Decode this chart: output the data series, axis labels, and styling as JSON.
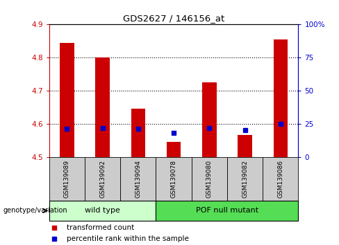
{
  "title": "GDS2627 / 146156_at",
  "samples": [
    "GSM139089",
    "GSM139092",
    "GSM139094",
    "GSM139078",
    "GSM139080",
    "GSM139082",
    "GSM139086"
  ],
  "bar_values": [
    4.845,
    4.8,
    4.645,
    4.545,
    4.725,
    4.565,
    4.855
  ],
  "percentile_values": [
    21,
    22,
    21,
    18,
    22,
    20,
    25
  ],
  "y_min": 4.5,
  "y_max": 4.9,
  "y_ticks": [
    4.5,
    4.6,
    4.7,
    4.8,
    4.9
  ],
  "y_right_ticks": [
    0,
    25,
    50,
    75,
    100
  ],
  "y_right_labels": [
    "0",
    "25",
    "50",
    "75",
    "100%"
  ],
  "bar_color": "#cc0000",
  "percentile_color": "#0000cc",
  "wild_type_samples": 3,
  "wild_type_label": "wild type",
  "mutant_label": "POF null mutant",
  "genotype_label": "genotype/variation",
  "legend_bar_label": "transformed count",
  "legend_dot_label": "percentile rank within the sample",
  "wild_type_bg": "#ccffcc",
  "mutant_bg": "#55dd55",
  "sample_box_bg": "#cccccc",
  "grid_color": "#000000",
  "title_color": "#000000",
  "left_axis_color": "#cc0000",
  "right_axis_color": "#0000cc"
}
